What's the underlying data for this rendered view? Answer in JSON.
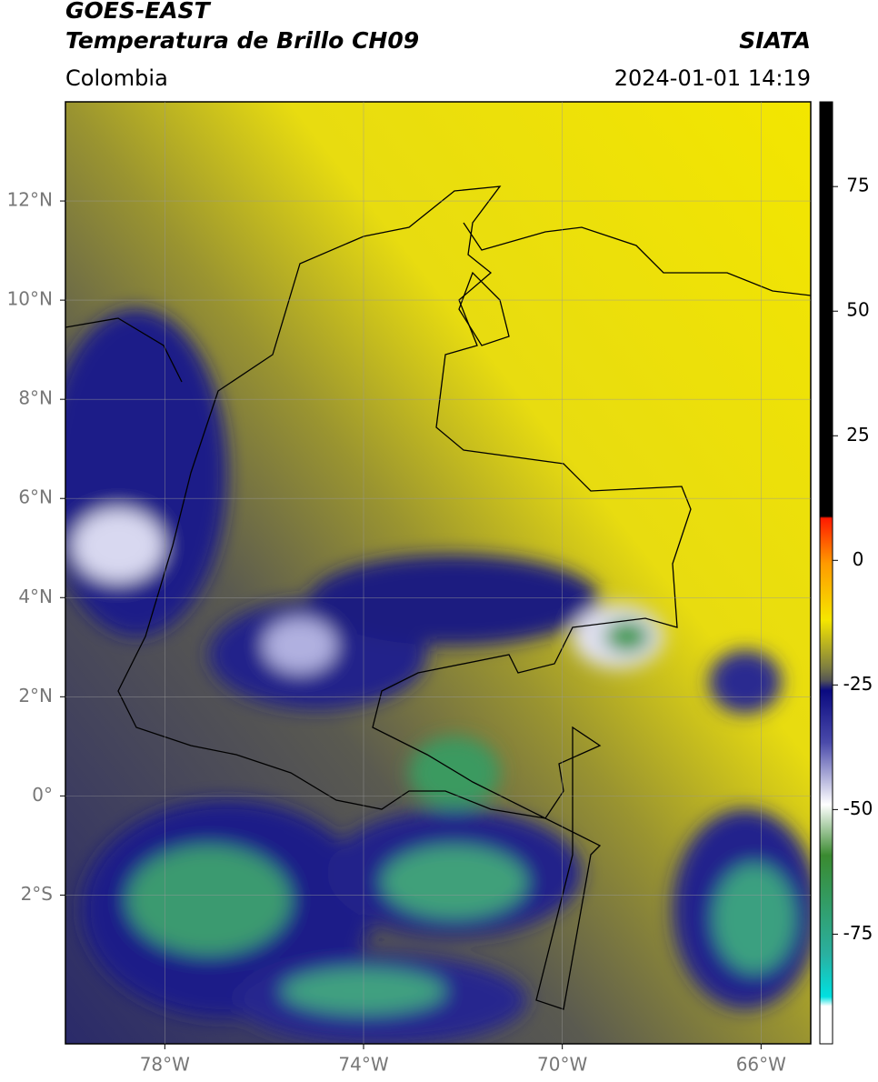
{
  "header": {
    "title": "GOES-EAST",
    "subtitle": "Temperatura de Brillo CH09",
    "source": "SIATA",
    "region": "Colombia",
    "datetime": "2024-01-01 14:19"
  },
  "map": {
    "xlim": [
      -80,
      -65
    ],
    "ylim": [
      -5,
      14
    ],
    "xticks": [
      {
        "value": -78,
        "label": "78°W"
      },
      {
        "value": -74,
        "label": "74°W"
      },
      {
        "value": -70,
        "label": "70°W"
      },
      {
        "value": -66,
        "label": "66°W"
      }
    ],
    "yticks": [
      {
        "value": 12,
        "label": "12°N"
      },
      {
        "value": 10,
        "label": "10°N"
      },
      {
        "value": 8,
        "label": "8°N"
      },
      {
        "value": 6,
        "label": "6°N"
      },
      {
        "value": 4,
        "label": "4°N"
      },
      {
        "value": 2,
        "label": "2°N"
      },
      {
        "value": 0,
        "label": "0°"
      },
      {
        "value": -2,
        "label": "2°S"
      }
    ]
  },
  "colorbar": {
    "ylim": [
      -97,
      92
    ],
    "yticks": [
      75,
      50,
      25,
      0,
      -25,
      -50,
      -75
    ]
  }
}
